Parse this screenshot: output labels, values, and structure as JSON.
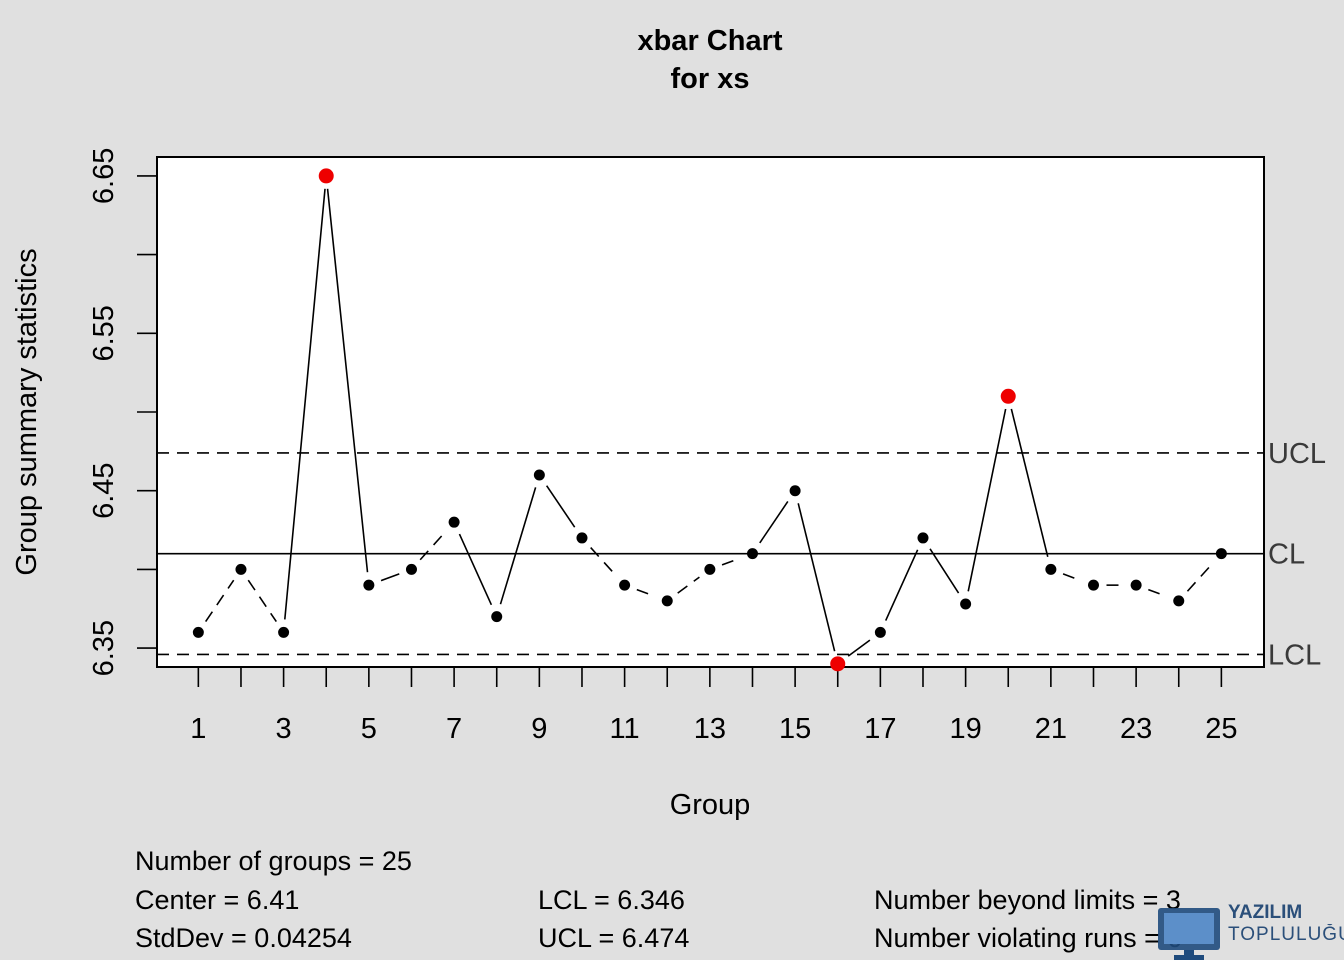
{
  "chart_data": {
    "type": "line",
    "title": "xbar Chart",
    "subtitle": "for xs",
    "xlabel": "Group",
    "ylabel": "Group summary statistics",
    "x": [
      1,
      2,
      3,
      4,
      5,
      6,
      7,
      8,
      9,
      10,
      11,
      12,
      13,
      14,
      15,
      16,
      17,
      18,
      19,
      20,
      21,
      22,
      23,
      24,
      25
    ],
    "values": [
      6.36,
      6.4,
      6.36,
      6.65,
      6.39,
      6.4,
      6.43,
      6.37,
      6.46,
      6.42,
      6.39,
      6.38,
      6.4,
      6.41,
      6.45,
      6.34,
      6.36,
      6.42,
      6.378,
      6.51,
      6.4,
      6.39,
      6.39,
      6.38,
      6.41
    ],
    "out_of_control": [
      4,
      16,
      20
    ],
    "ylim": [
      6.338,
      6.662
    ],
    "xlim": [
      0.03,
      26
    ],
    "x_ticks": [
      1,
      2,
      3,
      4,
      5,
      6,
      7,
      8,
      9,
      10,
      11,
      12,
      13,
      14,
      15,
      16,
      17,
      18,
      19,
      20,
      21,
      22,
      23,
      24,
      25
    ],
    "x_tick_labels": [
      "1",
      "3",
      "5",
      "7",
      "9",
      "11",
      "13",
      "15",
      "17",
      "19",
      "21",
      "23",
      "25"
    ],
    "x_tick_label_positions": [
      1,
      3,
      5,
      7,
      9,
      11,
      13,
      15,
      17,
      19,
      21,
      23,
      25
    ],
    "y_ticks": [
      6.35,
      6.4,
      6.45,
      6.5,
      6.55,
      6.6,
      6.65
    ],
    "y_tick_labels": [
      "6.35",
      "6.45",
      "6.55",
      "6.65"
    ],
    "y_tick_label_values": [
      6.35,
      6.45,
      6.55,
      6.65
    ],
    "control_lines": [
      {
        "name": "UCL",
        "value": 6.474,
        "style": "dashed"
      },
      {
        "name": "CL",
        "value": 6.41,
        "style": "solid"
      },
      {
        "name": "LCL",
        "value": 6.346,
        "style": "dashed"
      }
    ],
    "grid": false,
    "colors": {
      "point": "#000000",
      "violation": "#ee0000",
      "line": "#000000",
      "background": "#e0e0e0",
      "plot_bg": "#ffffff"
    }
  },
  "stats": {
    "groups": "Number of groups = 25",
    "center": "Center = 6.41",
    "stddev": "StdDev = 0.04254",
    "lcl": "LCL = 6.346",
    "ucl": "UCL = 6.474",
    "beyond": "Number beyond limits = 3",
    "runs": "Number violating runs = 0"
  },
  "watermark": {
    "line1": "YAZILIM",
    "line2": "TOPLULUĞU",
    "icon": "monitor-logo-icon"
  }
}
